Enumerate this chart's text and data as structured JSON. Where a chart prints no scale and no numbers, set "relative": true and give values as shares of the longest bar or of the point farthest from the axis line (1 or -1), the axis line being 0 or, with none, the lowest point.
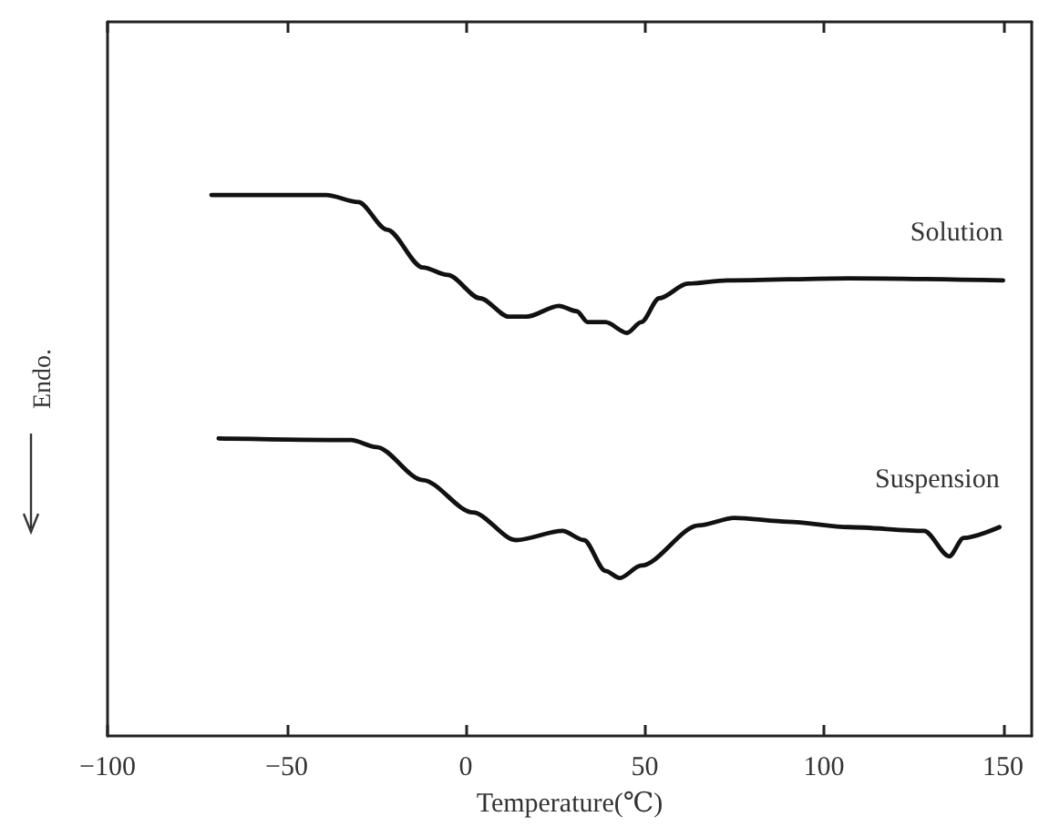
{
  "chart_data": {
    "type": "line",
    "relative": true,
    "xlabel": "Temperature(℃)",
    "ylabel": "Endo.",
    "xlim": [
      -100,
      158
    ],
    "xticks": [
      -100,
      -50,
      0,
      50,
      100,
      150
    ],
    "grid": false,
    "legend": false,
    "marker": "none",
    "line_style": "solid",
    "series": [
      {
        "name": "Solution",
        "color": "#111111",
        "x": [
          -71,
          -39,
          -30,
          -22,
          -12,
          -5,
          4,
          12,
          17,
          26,
          31,
          34,
          39,
          45,
          49,
          54,
          62,
          73,
          107,
          150
        ],
        "values": [
          1.0,
          1.0,
          0.987,
          0.936,
          0.866,
          0.852,
          0.809,
          0.775,
          0.775,
          0.795,
          0.785,
          0.765,
          0.765,
          0.745,
          0.765,
          0.809,
          0.836,
          0.842,
          0.846,
          0.842
        ]
      },
      {
        "name": "Suspension",
        "color": "#111111",
        "x": [
          -69,
          -32,
          -25,
          -12,
          2,
          14,
          27,
          33,
          39,
          43,
          49,
          65,
          75,
          90,
          107,
          128,
          135,
          139,
          149
        ],
        "values": [
          0.55,
          0.547,
          0.534,
          0.473,
          0.413,
          0.362,
          0.379,
          0.362,
          0.305,
          0.292,
          0.315,
          0.389,
          0.403,
          0.396,
          0.386,
          0.379,
          0.332,
          0.366,
          0.386
        ]
      }
    ]
  }
}
